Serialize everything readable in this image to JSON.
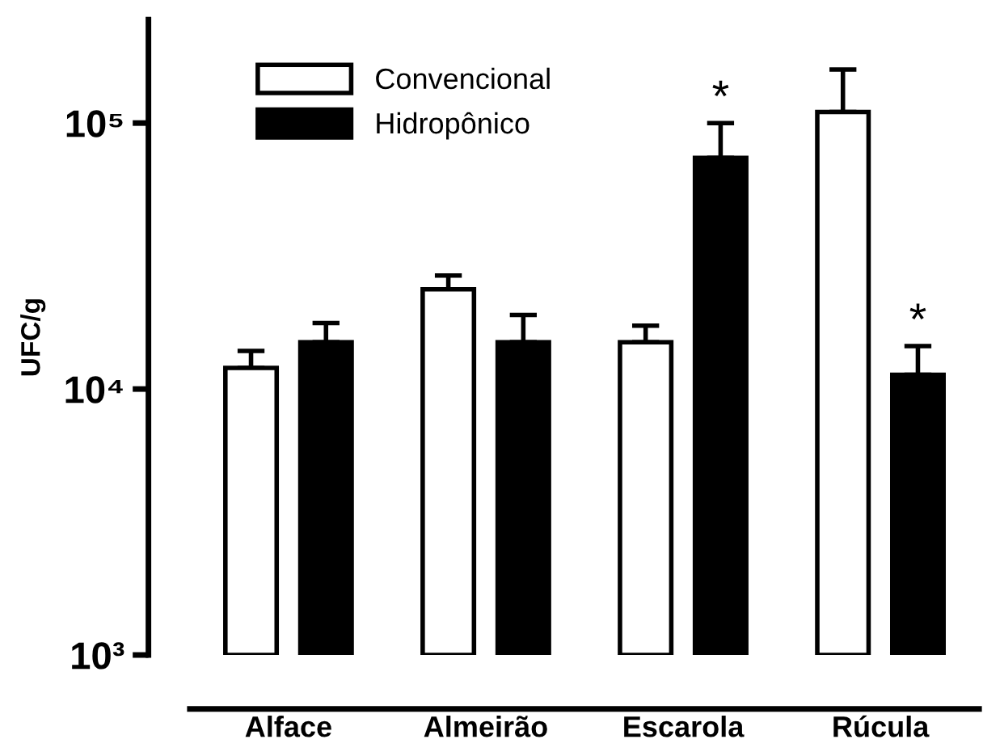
{
  "chart_data": {
    "type": "bar",
    "ylabel": "UFC/g",
    "categories": [
      "Alface",
      "Almeirão",
      "Escarola",
      "Rúcula"
    ],
    "series": [
      {
        "name": "Convencional",
        "color": "#ffffff",
        "values": [
          12000,
          23700,
          15000,
          110000
        ],
        "errors": [
          [
            12000,
            13900
          ],
          [
            23700,
            26700
          ],
          [
            15000,
            17300
          ],
          [
            110000,
            159000
          ]
        ]
      },
      {
        "name": "Hidropônico",
        "color": "#000000",
        "values": [
          15000,
          15000,
          74000,
          11300
        ],
        "errors": [
          [
            15000,
            17700
          ],
          [
            15000,
            19000
          ],
          [
            74000,
            100000
          ],
          [
            11300,
            14500
          ]
        ]
      }
    ],
    "log": "y",
    "ylim": [
      1000,
      245000
    ],
    "yticks": [
      {
        "value": 1000,
        "label": "10³"
      },
      {
        "value": 10000,
        "label": "10⁴"
      },
      {
        "value": 100000,
        "label": "10⁵"
      }
    ],
    "annotations": [
      "*",
      "*"
    ],
    "legend": "top left",
    "grid": false
  }
}
